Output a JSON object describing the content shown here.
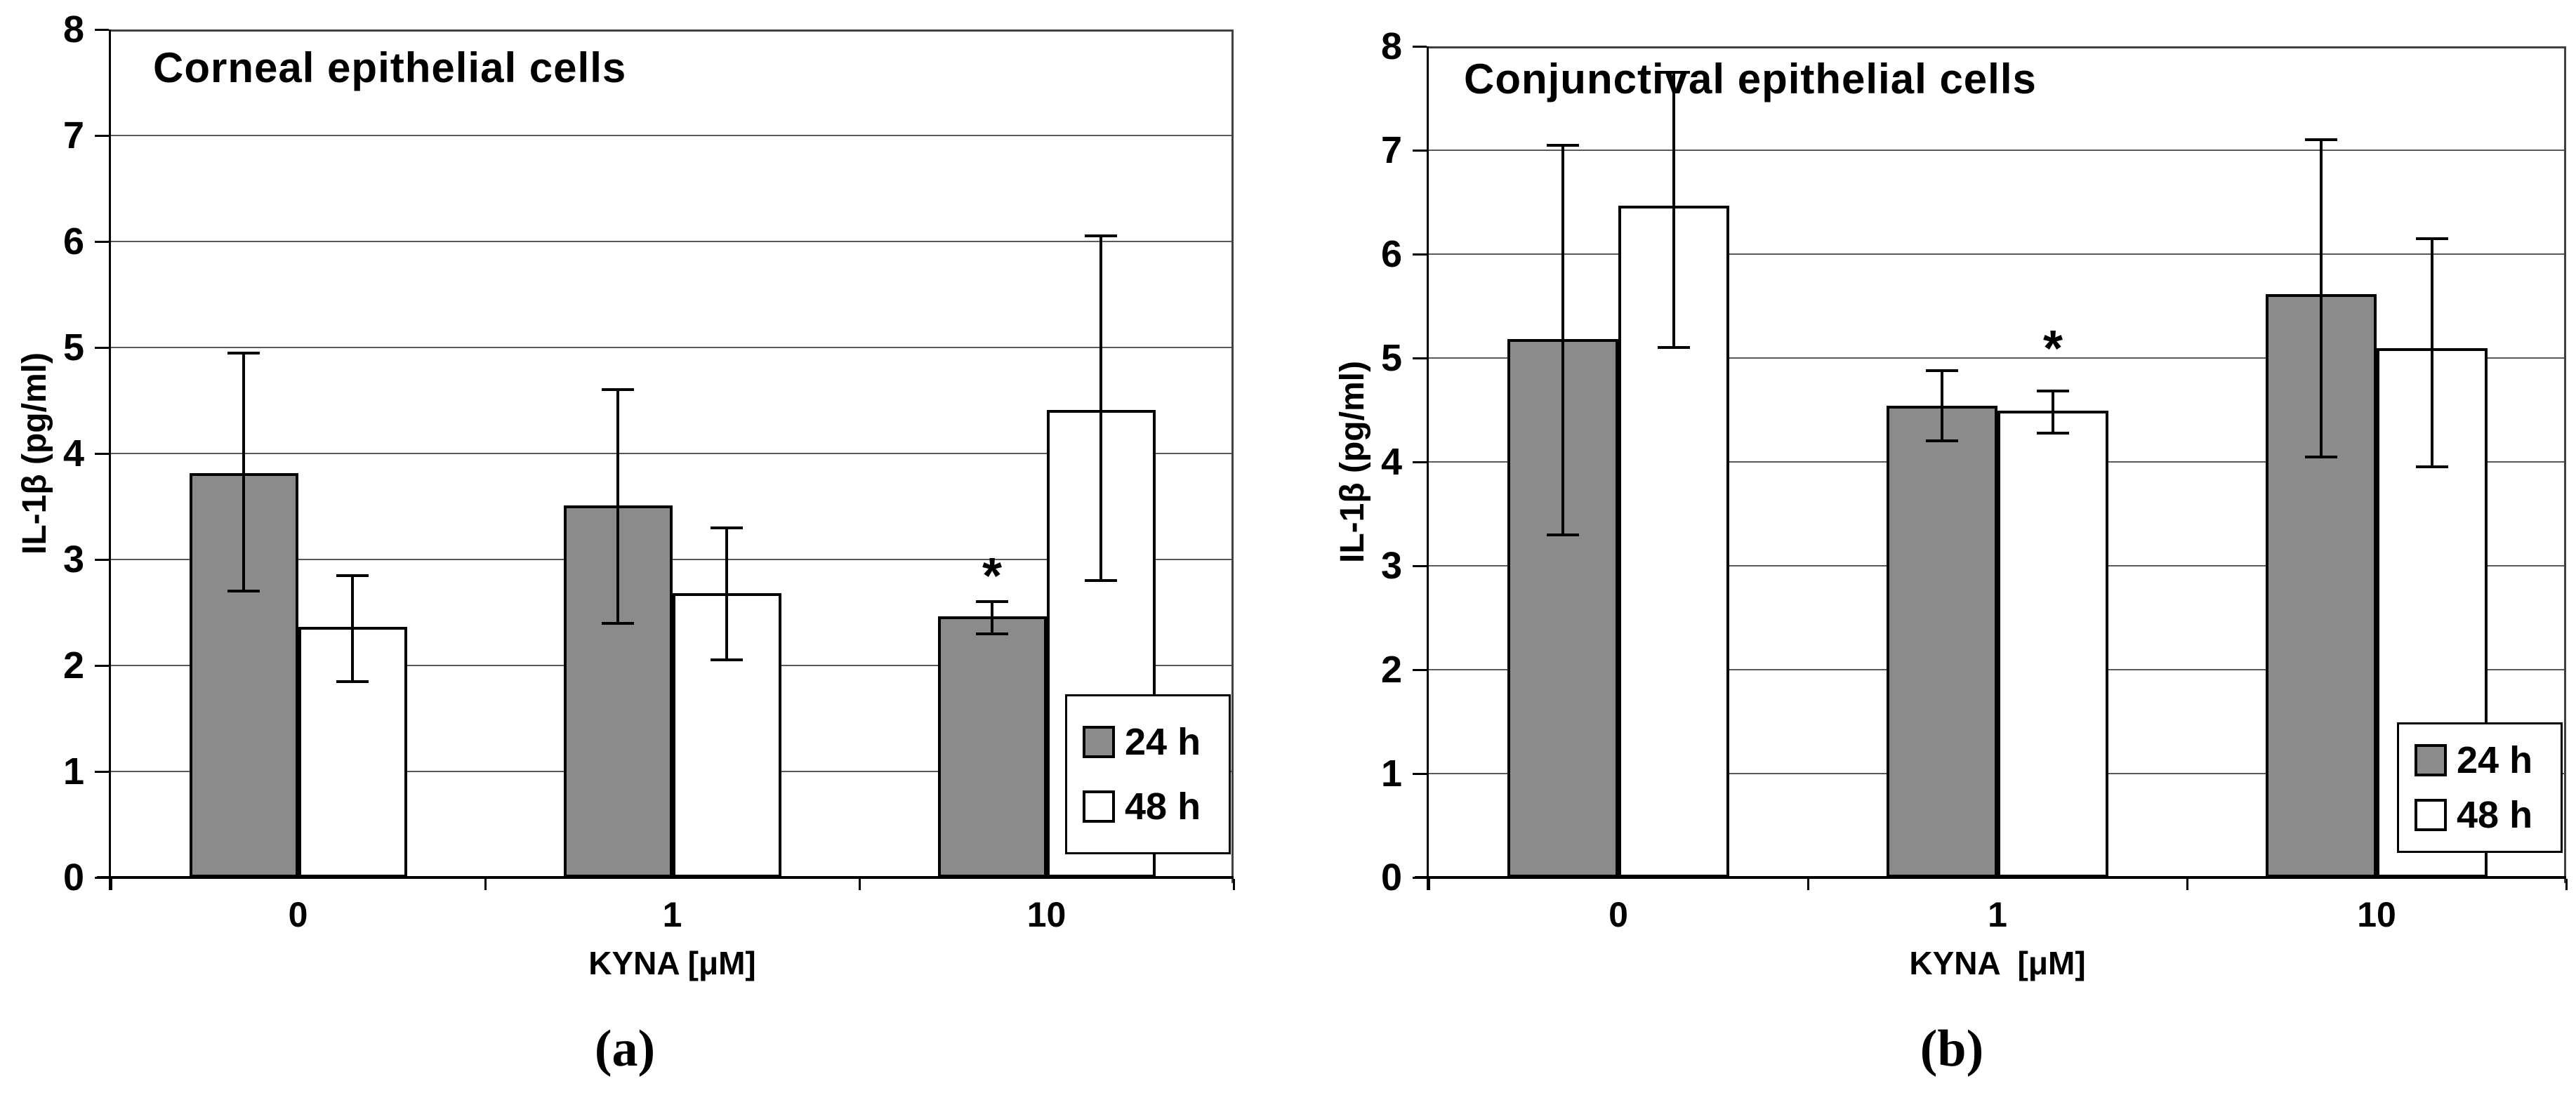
{
  "chart_data": [
    {
      "type": "bar",
      "panel_label": "(a)",
      "title": "Corneal epithelial cells",
      "ylabel": "IL-1β (pg/ml)",
      "xlabel": "KYNA [μM]",
      "categories": [
        "0",
        "1",
        "10"
      ],
      "series": [
        {
          "name": "24 h",
          "fill": "#8b8b8b",
          "values": [
            3.8,
            3.5,
            2.45
          ],
          "err_low": [
            2.7,
            2.4,
            2.3
          ],
          "err_high": [
            4.95,
            4.6,
            2.6
          ]
        },
        {
          "name": "48 h",
          "fill": "#ffffff",
          "values": [
            2.35,
            2.67,
            4.4
          ],
          "err_low": [
            1.85,
            2.05,
            2.8
          ],
          "err_high": [
            2.85,
            3.3,
            6.05
          ]
        }
      ],
      "annotations": [
        {
          "text": "*",
          "series_index": 0,
          "category_index": 2,
          "y": 2.9
        }
      ],
      "ylim": [
        0,
        8
      ],
      "yticks": [
        0,
        1,
        2,
        3,
        4,
        5,
        6,
        7,
        8
      ],
      "grid": true,
      "legend_position": "bottom-right",
      "legend_labels": [
        "24 h",
        "48 h"
      ]
    },
    {
      "type": "bar",
      "panel_label": "(b)",
      "title": "Conjunctival epithelial cells",
      "ylabel": "IL-1β (pg/ml)",
      "xlabel": "KYNA  [μM]",
      "categories": [
        "0",
        "1",
        "10"
      ],
      "series": [
        {
          "name": "24 h",
          "fill": "#8b8b8b",
          "values": [
            5.17,
            4.53,
            5.6
          ],
          "err_low": [
            3.3,
            4.2,
            4.05
          ],
          "err_high": [
            7.05,
            4.88,
            7.1
          ]
        },
        {
          "name": "48 h",
          "fill": "#ffffff",
          "values": [
            6.45,
            4.48,
            5.08
          ],
          "err_low": [
            5.1,
            4.28,
            3.95
          ],
          "err_high": [
            7.75,
            4.68,
            6.15
          ]
        }
      ],
      "annotations": [
        {
          "text": "*",
          "series_index": 1,
          "category_index": 1,
          "y": 5.15
        }
      ],
      "ylim": [
        0,
        8
      ],
      "yticks": [
        0,
        1,
        2,
        3,
        4,
        5,
        6,
        7,
        8
      ],
      "grid": true,
      "legend_position": "bottom-right",
      "legend_labels": [
        "24 h",
        "48 h"
      ]
    }
  ]
}
